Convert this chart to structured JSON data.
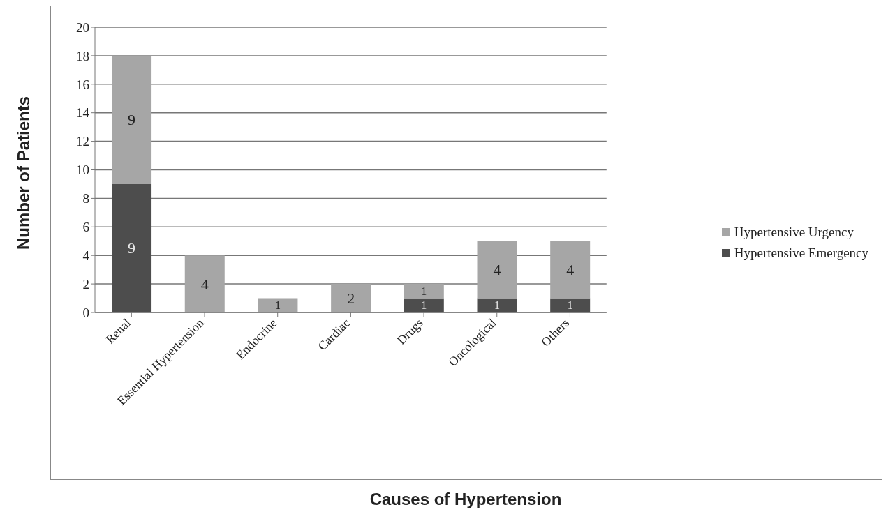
{
  "chart_data": {
    "type": "bar",
    "xlabel": "Causes of Hypertension",
    "ylabel": "Number of Patients",
    "categories": [
      "Renal",
      "Essential Hypertension",
      "Endocrine",
      "Cardiac",
      "Drugs",
      "Oncological",
      "Others"
    ],
    "stacked": true,
    "series": [
      {
        "name": "Hypertensive Emergency",
        "color": "#4d4d4d",
        "values": [
          9,
          0,
          0,
          0,
          1,
          1,
          1
        ],
        "value_labels": [
          "9",
          null,
          null,
          null,
          "1",
          "1",
          "1"
        ]
      },
      {
        "name": "Hypertensive Urgency",
        "color": "#a6a6a6",
        "values": [
          9,
          4,
          1,
          2,
          1,
          4,
          4
        ],
        "value_labels": [
          "9",
          "4",
          "1",
          "2",
          "1",
          "4",
          "4"
        ]
      }
    ],
    "ylim": [
      0,
      20
    ],
    "yticks": [
      0,
      2,
      4,
      6,
      8,
      10,
      12,
      14,
      16,
      18,
      20
    ],
    "grid": "y",
    "legend": "right"
  }
}
